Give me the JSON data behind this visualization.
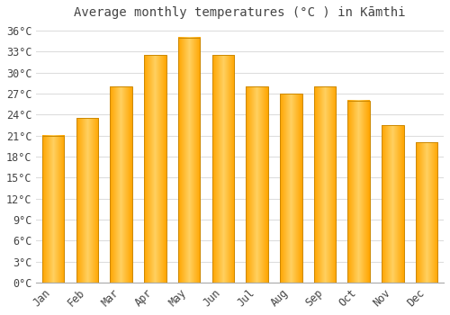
{
  "title": "Average monthly temperatures (°C ) in Kāmthi",
  "months": [
    "Jan",
    "Feb",
    "Mar",
    "Apr",
    "May",
    "Jun",
    "Jul",
    "Aug",
    "Sep",
    "Oct",
    "Nov",
    "Dec"
  ],
  "values": [
    21,
    23.5,
    28,
    32.5,
    35,
    32.5,
    28,
    27,
    28,
    26,
    22.5,
    20
  ],
  "bar_color_main": "#FFA500",
  "bar_color_center": "#FFD060",
  "bar_edge_color": "#CC8800",
  "background_color": "#FFFFFF",
  "plot_bg_color": "#FFFFFF",
  "grid_color": "#DDDDDD",
  "text_color": "#444444",
  "ylim": [
    0,
    37
  ],
  "yticks": [
    0,
    3,
    6,
    9,
    12,
    15,
    18,
    21,
    24,
    27,
    30,
    33,
    36
  ],
  "title_fontsize": 10,
  "tick_fontsize": 8.5,
  "bar_width": 0.65
}
